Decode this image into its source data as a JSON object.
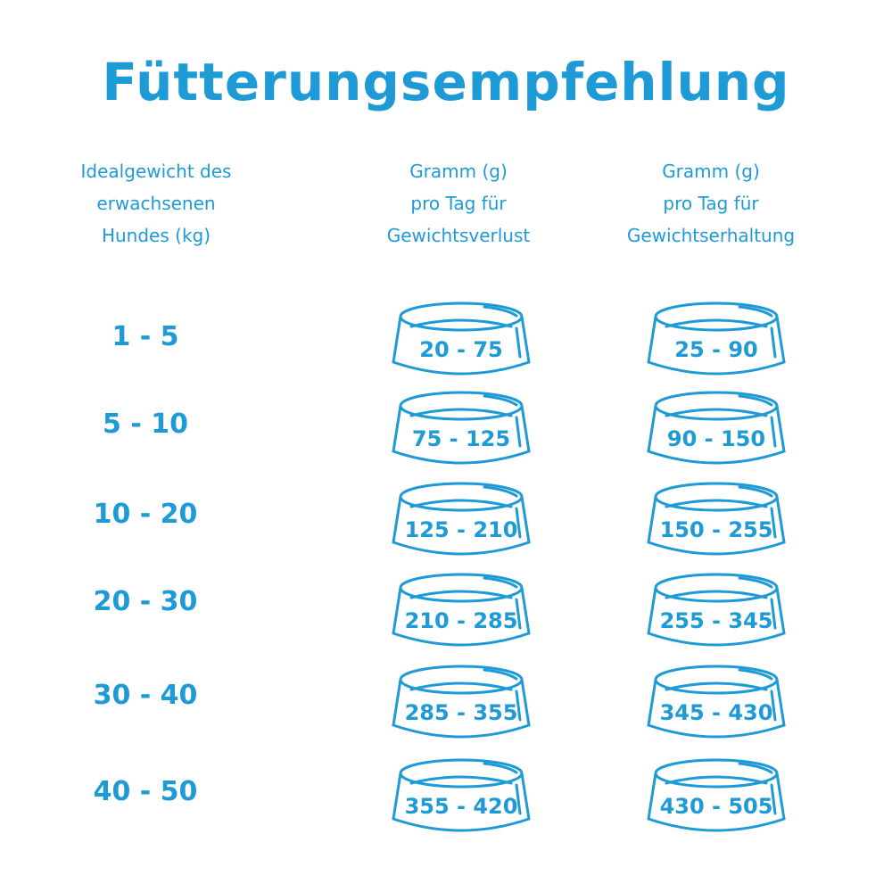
{
  "title": "Fütterungsempfehlung",
  "accent_color": "#1e9ad6",
  "headers": [
    "Idealgewicht des\nerwachsenen\nHundes (kg)",
    "Gramm (g)\npro Tag für\nGewichtsverlust",
    "Gramm (g)\npro Tag für\nGewichtserhaltung"
  ],
  "rows": [
    {
      "weight": "1 - 5",
      "loss": "20 - 75",
      "maintain": "25 - 90"
    },
    {
      "weight": "5 - 10",
      "loss": "75 - 125",
      "maintain": "90 - 150"
    },
    {
      "weight": "10 - 20",
      "loss": "125 - 210",
      "maintain": "150 - 255"
    },
    {
      "weight": "20 - 30",
      "loss": "210 - 285",
      "maintain": "255 - 345"
    },
    {
      "weight": "30 - 40",
      "loss": "285 - 355",
      "maintain": "345 - 430"
    },
    {
      "weight": "40 - 50",
      "loss": "355 - 420",
      "maintain": "430 - 505"
    }
  ],
  "icon": "food-bowl-icon"
}
